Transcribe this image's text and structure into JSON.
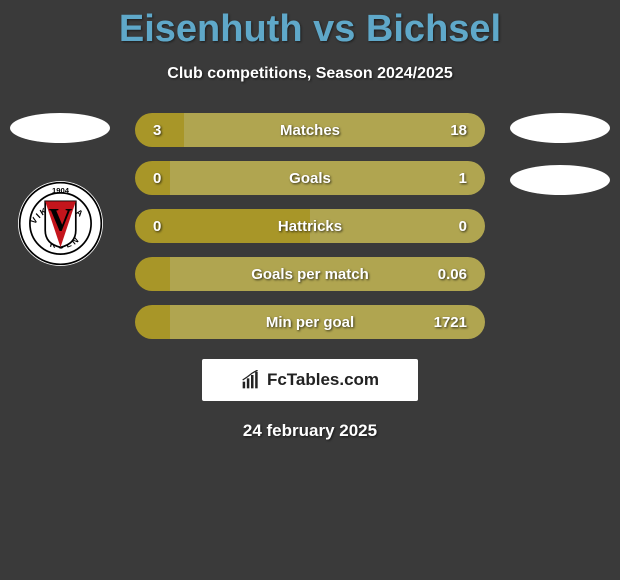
{
  "title": "Eisenhuth vs Bichsel",
  "subtitle": "Club competitions, Season 2024/2025",
  "date": "24 february 2025",
  "watermark": "FcTables.com",
  "colors": {
    "title": "#5fa8c9",
    "text": "#ffffff",
    "bar_left": "#a89628",
    "bar_right": "#b0a550",
    "background": "#3a3a3a",
    "watermark_bg": "#ffffff",
    "flag_bg": "#ffffff"
  },
  "club_badge_left": {
    "year": "1904",
    "ring_text_top": "VIKTORIA",
    "ring_text_bottom": "KOLN",
    "shield_letter": "V",
    "shield_colors": [
      "#ffffff",
      "#c4151c",
      "#000000"
    ]
  },
  "bars": [
    {
      "label": "Matches",
      "left": "3",
      "right": "18",
      "left_pct": 14,
      "right_pct": 86
    },
    {
      "label": "Goals",
      "left": "0",
      "right": "1",
      "left_pct": 10,
      "right_pct": 90
    },
    {
      "label": "Hattricks",
      "left": "0",
      "right": "0",
      "left_pct": 50,
      "right_pct": 50
    },
    {
      "label": "Goals per match",
      "left": "",
      "right": "0.06",
      "left_pct": 10,
      "right_pct": 90
    },
    {
      "label": "Min per goal",
      "left": "",
      "right": "1721",
      "left_pct": 10,
      "right_pct": 90
    }
  ]
}
